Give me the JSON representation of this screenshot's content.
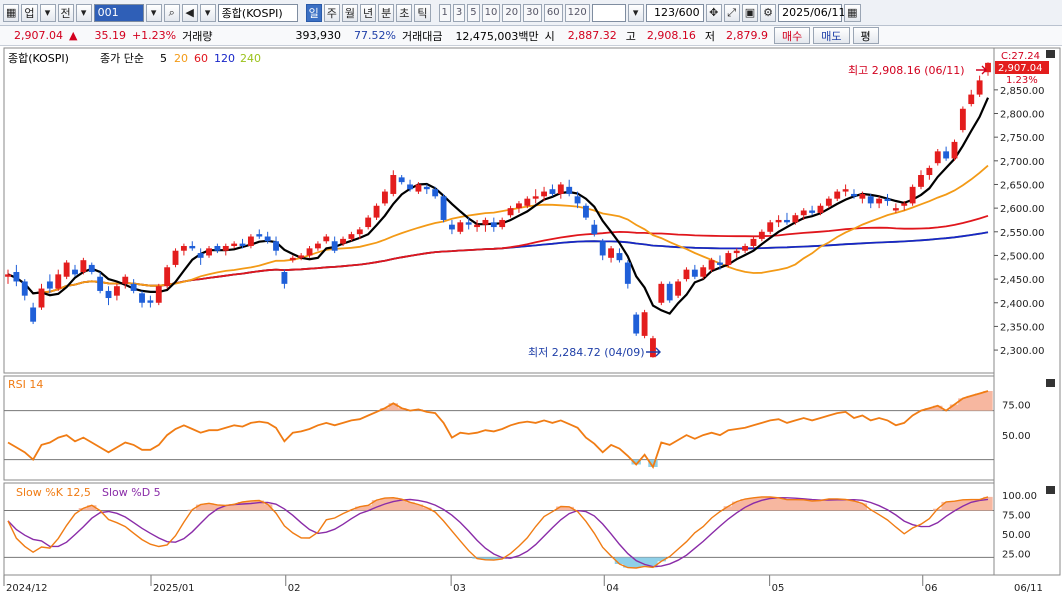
{
  "toolbar": {
    "market_dropdown": "업",
    "scope_label": "전",
    "code_value": "001",
    "index_name": "종합(KOSPI)",
    "period_tabs": [
      "일",
      "주",
      "월",
      "년",
      "분",
      "초",
      "틱"
    ],
    "active_period": "일",
    "interval_buttons": [
      "1",
      "3",
      "5",
      "10",
      "20",
      "30",
      "60",
      "120"
    ],
    "count_display": "123/600",
    "date_value": "2025/06/11"
  },
  "quote": {
    "price": "2,907.04",
    "change": "35.19",
    "change_pct": "+1.23%",
    "volume_label": "거래량",
    "volume": "393,930",
    "volume_ratio": "77.52%",
    "amount_label": "거래대금",
    "amount": "12,475,003백만",
    "open_label": "시",
    "open": "2,887.32",
    "high_label": "고",
    "high": "2,908.16",
    "low_label": "저",
    "low": "2,879.9",
    "buy_label": "매수",
    "sell_label": "매도",
    "eval_label": "평"
  },
  "colors": {
    "up": "#e31d1d",
    "down": "#1f5fd8",
    "ma5": "#000000",
    "ma20": "#f39a16",
    "ma60": "#e0161c",
    "ma120": "#1826c8",
    "ma240": "#9bc21b",
    "rsi": "#f07c14",
    "stoch_k": "#f07c14",
    "stoch_d": "#8a2ca8",
    "overbought_fill": "#f7b7a0",
    "oversold_fill": "#8fd0e8"
  },
  "chart_data": [
    {
      "type": "candlestick",
      "title": "종합(KOSPI)",
      "legend": {
        "label": "종가 단순",
        "periods": [
          "5",
          "20",
          "60",
          "120",
          "240"
        ]
      },
      "x_tick_labels": [
        "2024/12",
        "2025/01",
        "02",
        "03",
        "04",
        "05",
        "06",
        "06/11"
      ],
      "y_tick_labels": [
        "2,850.00",
        "2,800.00",
        "2,750.00",
        "2,700.00",
        "2,650.00",
        "2,600.00",
        "2,550.00",
        "2,500.00",
        "2,450.00",
        "2,400.00",
        "2,350.00",
        "2,300.00"
      ],
      "ylim": [
        2260,
        2930
      ],
      "annotations": {
        "high": "최고 2,908.16 (06/11)",
        "low": "최저 2,284.72 (04/09)",
        "current_price": "2,907.04",
        "current_pct": "1.23%",
        "c_value": "C:27.24"
      },
      "ohlc": [
        [
          2455,
          2470,
          2440,
          2460
        ],
        [
          2465,
          2480,
          2435,
          2445
        ],
        [
          2445,
          2450,
          2405,
          2415
        ],
        [
          2390,
          2400,
          2355,
          2360
        ],
        [
          2390,
          2440,
          2385,
          2430
        ],
        [
          2445,
          2460,
          2420,
          2430
        ],
        [
          2430,
          2470,
          2425,
          2460
        ],
        [
          2455,
          2490,
          2450,
          2485
        ],
        [
          2470,
          2480,
          2455,
          2460
        ],
        [
          2465,
          2495,
          2460,
          2490
        ],
        [
          2480,
          2485,
          2460,
          2465
        ],
        [
          2455,
          2465,
          2420,
          2425
        ],
        [
          2425,
          2435,
          2395,
          2410
        ],
        [
          2415,
          2440,
          2405,
          2435
        ],
        [
          2440,
          2460,
          2430,
          2455
        ],
        [
          2440,
          2450,
          2420,
          2425
        ],
        [
          2420,
          2425,
          2390,
          2400
        ],
        [
          2405,
          2415,
          2390,
          2400
        ],
        [
          2400,
          2440,
          2395,
          2435
        ],
        [
          2435,
          2480,
          2430,
          2475
        ],
        [
          2480,
          2515,
          2475,
          2510
        ],
        [
          2510,
          2525,
          2500,
          2520
        ],
        [
          2520,
          2530,
          2510,
          2515
        ],
        [
          2505,
          2515,
          2480,
          2495
        ],
        [
          2500,
          2520,
          2495,
          2515
        ],
        [
          2520,
          2525,
          2505,
          2510
        ],
        [
          2510,
          2525,
          2500,
          2520
        ],
        [
          2520,
          2530,
          2515,
          2525
        ],
        [
          2525,
          2535,
          2515,
          2520
        ],
        [
          2520,
          2545,
          2515,
          2540
        ],
        [
          2545,
          2555,
          2535,
          2540
        ],
        [
          2540,
          2550,
          2525,
          2530
        ],
        [
          2530,
          2540,
          2500,
          2510
        ],
        [
          2465,
          2470,
          2430,
          2440
        ],
        [
          2490,
          2500,
          2485,
          2495
        ],
        [
          2495,
          2505,
          2490,
          2500
        ],
        [
          2500,
          2520,
          2495,
          2515
        ],
        [
          2515,
          2530,
          2510,
          2525
        ],
        [
          2530,
          2545,
          2525,
          2540
        ],
        [
          2530,
          2540,
          2505,
          2510
        ],
        [
          2525,
          2540,
          2520,
          2535
        ],
        [
          2535,
          2550,
          2530,
          2545
        ],
        [
          2545,
          2560,
          2535,
          2555
        ],
        [
          2560,
          2585,
          2555,
          2580
        ],
        [
          2580,
          2610,
          2575,
          2605
        ],
        [
          2610,
          2640,
          2605,
          2635
        ],
        [
          2630,
          2680,
          2625,
          2670
        ],
        [
          2665,
          2670,
          2650,
          2655
        ],
        [
          2650,
          2660,
          2635,
          2640
        ],
        [
          2635,
          2655,
          2630,
          2650
        ],
        [
          2645,
          2650,
          2630,
          2640
        ],
        [
          2640,
          2645,
          2620,
          2625
        ],
        [
          2625,
          2630,
          2570,
          2575
        ],
        [
          2565,
          2575,
          2545,
          2555
        ],
        [
          2550,
          2575,
          2545,
          2570
        ],
        [
          2570,
          2580,
          2555,
          2565
        ],
        [
          2560,
          2575,
          2550,
          2565
        ],
        [
          2565,
          2580,
          2550,
          2575
        ],
        [
          2570,
          2580,
          2550,
          2560
        ],
        [
          2560,
          2580,
          2555,
          2575
        ],
        [
          2585,
          2605,
          2580,
          2600
        ],
        [
          2600,
          2615,
          2590,
          2610
        ],
        [
          2605,
          2625,
          2600,
          2620
        ],
        [
          2620,
          2640,
          2610,
          2625
        ],
        [
          2625,
          2645,
          2615,
          2635
        ],
        [
          2640,
          2650,
          2625,
          2630
        ],
        [
          2630,
          2655,
          2620,
          2650
        ],
        [
          2645,
          2660,
          2625,
          2630
        ],
        [
          2625,
          2635,
          2600,
          2610
        ],
        [
          2605,
          2610,
          2575,
          2580
        ],
        [
          2565,
          2575,
          2540,
          2545
        ],
        [
          2530,
          2535,
          2490,
          2500
        ],
        [
          2495,
          2520,
          2485,
          2515
        ],
        [
          2505,
          2515,
          2485,
          2490
        ],
        [
          2485,
          2490,
          2430,
          2440
        ],
        [
          2375,
          2380,
          2330,
          2335
        ],
        [
          2330,
          2385,
          2325,
          2380
        ],
        [
          2285,
          2330,
          2284,
          2325
        ],
        [
          2400,
          2445,
          2395,
          2440
        ],
        [
          2440,
          2445,
          2400,
          2405
        ],
        [
          2415,
          2450,
          2410,
          2445
        ],
        [
          2450,
          2475,
          2445,
          2470
        ],
        [
          2470,
          2480,
          2450,
          2455
        ],
        [
          2455,
          2480,
          2450,
          2475
        ],
        [
          2470,
          2495,
          2465,
          2490
        ],
        [
          2485,
          2500,
          2470,
          2480
        ],
        [
          2480,
          2510,
          2475,
          2505
        ],
        [
          2505,
          2515,
          2495,
          2510
        ],
        [
          2510,
          2525,
          2505,
          2520
        ],
        [
          2520,
          2540,
          2515,
          2535
        ],
        [
          2535,
          2555,
          2530,
          2550
        ],
        [
          2550,
          2575,
          2545,
          2570
        ],
        [
          2570,
          2585,
          2560,
          2575
        ],
        [
          2575,
          2590,
          2565,
          2570
        ],
        [
          2570,
          2590,
          2565,
          2585
        ],
        [
          2585,
          2600,
          2575,
          2595
        ],
        [
          2595,
          2605,
          2585,
          2590
        ],
        [
          2590,
          2610,
          2585,
          2605
        ],
        [
          2605,
          2625,
          2600,
          2620
        ],
        [
          2620,
          2640,
          2615,
          2635
        ],
        [
          2635,
          2650,
          2625,
          2640
        ],
        [
          2630,
          2640,
          2620,
          2625
        ],
        [
          2620,
          2635,
          2610,
          2630
        ],
        [
          2625,
          2630,
          2600,
          2610
        ],
        [
          2610,
          2625,
          2600,
          2620
        ],
        [
          2620,
          2630,
          2605,
          2615
        ],
        [
          2595,
          2610,
          2590,
          2600
        ],
        [
          2605,
          2615,
          2595,
          2610
        ],
        [
          2610,
          2650,
          2605,
          2645
        ],
        [
          2645,
          2680,
          2640,
          2670
        ],
        [
          2670,
          2690,
          2660,
          2685
        ],
        [
          2695,
          2725,
          2690,
          2720
        ],
        [
          2720,
          2730,
          2700,
          2705
        ],
        [
          2705,
          2745,
          2700,
          2740
        ],
        [
          2765,
          2815,
          2760,
          2810
        ],
        [
          2820,
          2850,
          2815,
          2840
        ],
        [
          2840,
          2880,
          2835,
          2870
        ],
        [
          2887.32,
          2908.16,
          2879.9,
          2907.04
        ]
      ]
    },
    {
      "type": "line",
      "title": "RSI 14",
      "series": [
        {
          "name": "RSI 14"
        }
      ],
      "y_tick_labels": [
        "75.00",
        "50.00"
      ],
      "ylim": [
        15,
        95
      ],
      "reference_lines": [
        70,
        30
      ],
      "values": [
        44,
        40,
        36,
        30,
        42,
        44,
        48,
        50,
        45,
        48,
        44,
        40,
        36,
        40,
        44,
        42,
        38,
        38,
        42,
        50,
        55,
        58,
        55,
        52,
        54,
        54,
        56,
        58,
        57,
        60,
        61,
        60,
        56,
        45,
        52,
        53,
        55,
        58,
        60,
        58,
        60,
        62,
        63,
        66,
        69,
        72,
        76,
        72,
        70,
        71,
        69,
        68,
        60,
        48,
        52,
        51,
        52,
        54,
        53,
        55,
        58,
        60,
        61,
        60,
        62,
        60,
        62,
        59,
        56,
        48,
        43,
        36,
        42,
        39,
        33,
        26,
        34,
        24,
        44,
        42,
        46,
        50,
        47,
        50,
        52,
        50,
        54,
        55,
        56,
        58,
        60,
        62,
        63,
        60,
        62,
        64,
        62,
        64,
        66,
        68,
        69,
        64,
        66,
        62,
        64,
        62,
        58,
        60,
        66,
        70,
        72,
        74,
        70,
        75,
        80,
        82,
        84,
        86
      ]
    },
    {
      "type": "line",
      "title": "Slow %K 12,5  Slow %D 5",
      "series": [
        {
          "name": "Slow %K 12,5"
        },
        {
          "name": "Slow %D 5"
        }
      ],
      "y_tick_labels": [
        "100.00",
        "75.00",
        "50.00",
        "25.00"
      ],
      "ylim": [
        0,
        110
      ],
      "reference_lines": [
        80,
        20
      ]
    }
  ]
}
